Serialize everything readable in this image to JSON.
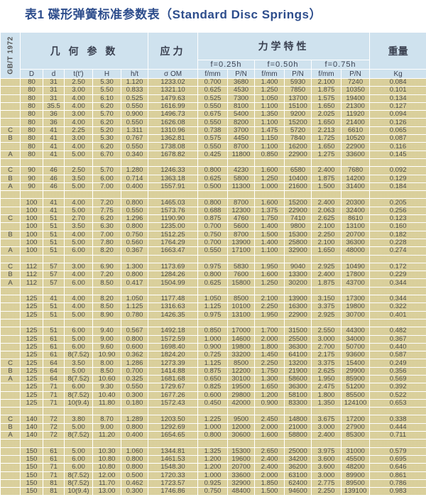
{
  "title": "表1  碟形弹簧标准参数表（Standard Disc Springs）",
  "header": {
    "standard": "GB/T 1972",
    "geometry": "几 何 参 数",
    "stress": "应力",
    "mechanics": "力学特性",
    "weight": "重量",
    "f025": "f=0.25h",
    "f050": "f=0.50h",
    "f075": "f=0.75h",
    "columns": [
      "D",
      "d",
      "t(t')",
      "H",
      "h/t",
      "σ OM",
      "f/mm",
      "P/N",
      "f/mm",
      "P/N",
      "f/mm",
      "P/N",
      "Kg"
    ]
  },
  "colors": {
    "title": "#2d4d8c",
    "header_bg": "#cfe2ee",
    "row_bg": "#ddd3a0",
    "grid": "#ffffff"
  },
  "rows": [
    [
      "",
      "80",
      "31",
      "2.50",
      "5.30",
      "1.120",
      "1233.02",
      "0.700",
      "3680",
      "1.400",
      "5930",
      "2.100",
      "7240",
      "0.084"
    ],
    [
      "",
      "80",
      "31",
      "3.00",
      "5.50",
      "0.833",
      "1321.10",
      "0.625",
      "4530",
      "1.250",
      "7850",
      "1.875",
      "10350",
      "0.101"
    ],
    [
      "",
      "80",
      "31",
      "4.00",
      "6.10",
      "0.525",
      "1479.63",
      "0.525",
      "7300",
      "1.050",
      "13700",
      "1.575",
      "19400",
      "0.134"
    ],
    [
      "",
      "80",
      "35.5",
      "4.00",
      "6.20",
      "0.550",
      "1616.99",
      "0.550",
      "8100",
      "1.100",
      "15100",
      "1.650",
      "21300",
      "0.127"
    ],
    [
      "",
      "80",
      "36",
      "3.00",
      "5.70",
      "0.900",
      "1496.73",
      "0.675",
      "5400",
      "1.350",
      "9200",
      "2.025",
      "11920",
      "0.094"
    ],
    [
      "",
      "80",
      "36",
      "4.00",
      "6.20",
      "0.550",
      "1626.08",
      "0.550",
      "8200",
      "1.100",
      "15200",
      "1.650",
      "21400",
      "0.126"
    ],
    [
      "C",
      "80",
      "41",
      "2.25",
      "5.20",
      "1.311",
      "1310.96",
      "0.738",
      "3700",
      "1.475",
      "5720",
      "2.213",
      "6610",
      "0.065"
    ],
    [
      "B",
      "80",
      "41",
      "3.00",
      "5.30",
      "0.767",
      "1362.81",
      "0.575",
      "4450",
      "1.150",
      "7840",
      "1.725",
      "10520",
      "0.087"
    ],
    [
      "",
      "80",
      "41",
      "4.00",
      "6.20",
      "0.550",
      "1738.08",
      "0.550",
      "8700",
      "1.100",
      "16200",
      "1.650",
      "22900",
      "0.116"
    ],
    [
      "A",
      "80",
      "41",
      "5.00",
      "6.70",
      "0.340",
      "1678.82",
      "0.425",
      "11800",
      "0.850",
      "22900",
      "1.275",
      "33600",
      "0.145"
    ],
    [],
    [
      "C",
      "90",
      "46",
      "2.50",
      "5.70",
      "1.280",
      "1246.33",
      "0.800",
      "4230",
      "1.600",
      "6580",
      "2.400",
      "7680",
      "0.092"
    ],
    [
      "B",
      "90",
      "46",
      "3.50",
      "6.00",
      "0.714",
      "1363.18",
      "0.625",
      "5800",
      "1.250",
      "10400",
      "1.875",
      "14200",
      "0.129"
    ],
    [
      "A",
      "90",
      "46",
      "5.00",
      "7.00",
      "0.400",
      "1557.91",
      "0.500",
      "11300",
      "1.000",
      "21600",
      "1.500",
      "31400",
      "0.184"
    ],
    [],
    [
      "",
      "100",
      "41",
      "4.00",
      "7.20",
      "0.800",
      "1465.03",
      "0.800",
      "8700",
      "1.600",
      "15200",
      "2.400",
      "20300",
      "0.205"
    ],
    [
      "",
      "100",
      "41",
      "5.00",
      "7.75",
      "0.550",
      "1573.76",
      "0.688",
      "12300",
      "1.375",
      "22900",
      "2.063",
      "32400",
      "0.256"
    ],
    [
      "C",
      "100",
      "51",
      "2.70",
      "6.20",
      "1.296",
      "1190.90",
      "0.875",
      "4760",
      "1.750",
      "7410",
      "2.625",
      "8610",
      "0.123"
    ],
    [
      "",
      "100",
      "51",
      "3.50",
      "6.30",
      "0.800",
      "1235.00",
      "0.700",
      "5600",
      "1.400",
      "9800",
      "2.100",
      "13100",
      "0.160"
    ],
    [
      "B",
      "100",
      "51",
      "4.00",
      "7.00",
      "0.750",
      "1512.25",
      "0.750",
      "8700",
      "1.500",
      "15300",
      "2.250",
      "20700",
      "0.182"
    ],
    [
      "",
      "100",
      "51",
      "5.00",
      "7.80",
      "0.560",
      "1764.29",
      "0.700",
      "13900",
      "1.400",
      "25800",
      "2.100",
      "36300",
      "0.228"
    ],
    [
      "A",
      "100",
      "51",
      "6.00",
      "8.20",
      "0.367",
      "1663.47",
      "0.550",
      "17100",
      "1.100",
      "32900",
      "1.650",
      "48000",
      "0.274"
    ],
    [],
    [
      "C",
      "112",
      "57",
      "3.00",
      "6.90",
      "1.300",
      "1173.69",
      "0.975",
      "5830",
      "1.950",
      "9040",
      "2.925",
      "10490",
      "0.172"
    ],
    [
      "B",
      "112",
      "57",
      "4.00",
      "7.20",
      "0.800",
      "1284.26",
      "0.800",
      "7600",
      "1.600",
      "13300",
      "2.400",
      "17800",
      "0.229"
    ],
    [
      "A",
      "112",
      "57",
      "6.00",
      "8.50",
      "0.417",
      "1504.99",
      "0.625",
      "15800",
      "1.250",
      "30200",
      "1.875",
      "43700",
      "0.344"
    ],
    [],
    [
      "",
      "125",
      "41",
      "4.00",
      "8.20",
      "1.050",
      "1177.48",
      "1.050",
      "8500",
      "2.100",
      "13900",
      "3.150",
      "17300",
      "0.344"
    ],
    [
      "",
      "125",
      "51",
      "4.00",
      "8.50",
      "1.125",
      "1316.63",
      "1.125",
      "10100",
      "2.250",
      "16300",
      "3.375",
      "19800",
      "0.322"
    ],
    [
      "",
      "125",
      "51",
      "5.00",
      "8.90",
      "0.780",
      "1426.35",
      "0.975",
      "13100",
      "1.950",
      "22900",
      "2.925",
      "30700",
      "0.401"
    ],
    [],
    [
      "",
      "125",
      "51",
      "6.00",
      "9.40",
      "0.567",
      "1492.18",
      "0.850",
      "17000",
      "1.700",
      "31500",
      "2.550",
      "44300",
      "0.482"
    ],
    [
      "",
      "125",
      "61",
      "5.00",
      "9.00",
      "0.800",
      "1572.59",
      "1.000",
      "14600",
      "2.000",
      "25500",
      "3.000",
      "34000",
      "0.367"
    ],
    [
      "",
      "125",
      "61",
      "6.00",
      "9.60",
      "0.600",
      "1698.40",
      "0.900",
      "19800",
      "1.800",
      "36300",
      "2.700",
      "50700",
      "0.440"
    ],
    [
      "",
      "125",
      "61",
      "8(7.52)",
      "10.90",
      "0.362",
      "1824.20",
      "0.725",
      "33200",
      "1.450",
      "64100",
      "2.175",
      "93600",
      "0.587"
    ],
    [
      "C",
      "125",
      "64",
      "3.50",
      "8.00",
      "1.286",
      "1273.39",
      "1.125",
      "8500",
      "2.250",
      "13200",
      "3.375",
      "15400",
      "0.249"
    ],
    [
      "B",
      "125",
      "64",
      "5.00",
      "8.50",
      "0.700",
      "1414.88",
      "0.875",
      "12200",
      "1.750",
      "21900",
      "2.625",
      "29900",
      "0.356"
    ],
    [
      "A",
      "125",
      "64",
      "8(7.52)",
      "10.60",
      "0.325",
      "1681.68",
      "0.650",
      "30100",
      "1.300",
      "58600",
      "1.950",
      "85900",
      "0.569"
    ],
    [
      "",
      "125",
      "71",
      "6.00",
      "9.30",
      "0.550",
      "1729.67",
      "0.825",
      "19500",
      "1.650",
      "36300",
      "2.475",
      "51200",
      "0.392"
    ],
    [
      "",
      "125",
      "71",
      "8(7.52)",
      "10.40",
      "0.300",
      "1677.26",
      "0.600",
      "29800",
      "1.200",
      "58100",
      "1.800",
      "85500",
      "0.522"
    ],
    [
      "",
      "125",
      "71",
      "10(9.4)",
      "11.80",
      "0.180",
      "1572.43",
      "0.450",
      "42000",
      "0.900",
      "83300",
      "1.350",
      "124100",
      "0.653"
    ],
    [],
    [
      "C",
      "140",
      "72",
      "3.80",
      "8.70",
      "1.289",
      "1203.50",
      "1.225",
      "9500",
      "2.450",
      "14800",
      "3.675",
      "17200",
      "0.338"
    ],
    [
      "B",
      "140",
      "72",
      "5.00",
      "9.00",
      "0.800",
      "1292.69",
      "1.000",
      "12000",
      "2.000",
      "21000",
      "3.000",
      "27900",
      "0.444"
    ],
    [
      "A",
      "140",
      "72",
      "8(7.52)",
      "11.20",
      "0.400",
      "1654.65",
      "0.800",
      "30600",
      "1.600",
      "58800",
      "2.400",
      "85300",
      "0.711"
    ],
    [],
    [
      "",
      "150",
      "61",
      "5.00",
      "10.30",
      "1.060",
      "1344.81",
      "1.325",
      "15300",
      "2.650",
      "25000",
      "3.975",
      "31000",
      "0.579"
    ],
    [
      "",
      "150",
      "61",
      "6.00",
      "10.80",
      "0.800",
      "1461.53",
      "1.200",
      "19600",
      "2.400",
      "34200",
      "3.600",
      "45500",
      "0.695"
    ],
    [
      "",
      "150",
      "71",
      "6.00",
      "10.80",
      "0.800",
      "1548.30",
      "1.200",
      "20700",
      "2.400",
      "36200",
      "3.600",
      "48200",
      "0.646"
    ],
    [
      "",
      "150",
      "71",
      "8(7.52)",
      "12.00",
      "0.500",
      "1720.33",
      "1.000",
      "33600",
      "2.000",
      "63100",
      "3.000",
      "89900",
      "0.861"
    ],
    [
      "",
      "150",
      "81",
      "8(7.52)",
      "11.70",
      "0.462",
      "1723.57",
      "0.925",
      "32900",
      "1.850",
      "62400",
      "2.775",
      "89500",
      "0.786"
    ],
    [
      "",
      "150",
      "81",
      "10(9.4)",
      "13.00",
      "0.300",
      "1746.86",
      "0.750",
      "48400",
      "1.500",
      "94600",
      "2.250",
      "139100",
      "0.983"
    ]
  ]
}
